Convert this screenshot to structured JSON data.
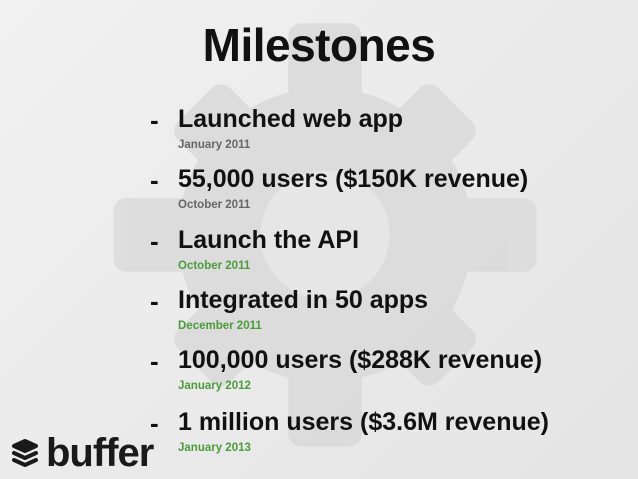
{
  "title": "Milestones",
  "colors": {
    "date_gray": "#666666",
    "date_green": "#4c9a3c",
    "background": "#ebebeb"
  },
  "items": [
    {
      "headline": "Launched web app",
      "date": "January 2011",
      "date_color": "gray"
    },
    {
      "headline": "55,000 users ($150K revenue)",
      "date": "October 2011",
      "date_color": "gray"
    },
    {
      "headline": "Launch the API",
      "date": "October 2011",
      "date_color": "green"
    },
    {
      "headline": "Integrated in 50 apps",
      "date": "December 2011",
      "date_color": "green"
    },
    {
      "headline": "100,000 users ($288K revenue)",
      "date": "January 2012",
      "date_color": "green"
    },
    {
      "headline": "1 million users ($3.6M revenue)",
      "date": "January 2013",
      "date_color": "green"
    }
  ],
  "bullet": "-",
  "logo": {
    "text": "buffer",
    "icon": "stacked-layers-icon"
  }
}
